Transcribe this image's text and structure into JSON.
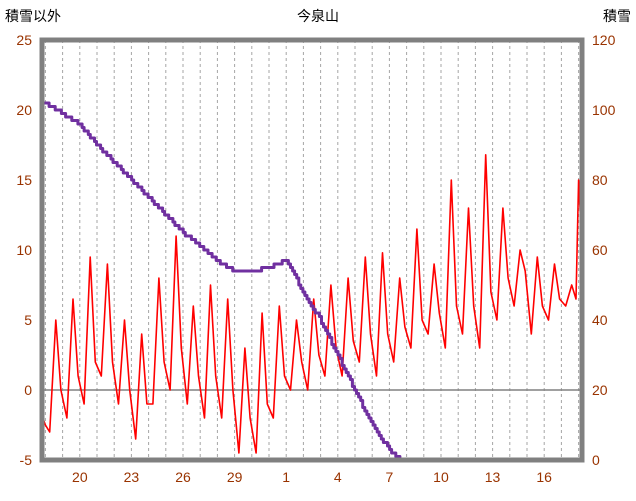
{
  "chart_data": {
    "type": "line",
    "title": "今泉山",
    "left_axis": {
      "title": "積雪以外",
      "min": -5,
      "max": 25,
      "ticks": [
        25,
        20,
        15,
        10,
        5,
        0,
        -5
      ]
    },
    "right_axis": {
      "title": "積雪",
      "min": 0,
      "max": 120,
      "ticks": [
        120,
        100,
        80,
        60,
        40,
        20,
        0
      ]
    },
    "x_axis": {
      "min": 17.8,
      "max": 49.2,
      "gridline_step": 1,
      "tick_positions": [
        20,
        23,
        26,
        29,
        32,
        35,
        38,
        41,
        44,
        47
      ],
      "tick_labels": [
        "20",
        "23",
        "26",
        "29",
        "1",
        "4",
        "7",
        "10",
        "13",
        "16"
      ]
    },
    "colors": {
      "frame": "#808080",
      "gridline": "#A6A6A6",
      "zero_line": "#808080",
      "tick_label": "#993300",
      "title": "#000000"
    },
    "series": [
      {
        "name": "積雪以外",
        "axis": "left",
        "color": "#FF0000",
        "style": "line",
        "points": [
          [
            17.85,
            -2
          ],
          [
            18.0,
            -2.5
          ],
          [
            18.25,
            -3
          ],
          [
            18.6,
            5
          ],
          [
            18.9,
            0
          ],
          [
            19.25,
            -2
          ],
          [
            19.6,
            6.5
          ],
          [
            19.9,
            1
          ],
          [
            20.25,
            -1
          ],
          [
            20.6,
            9.5
          ],
          [
            20.9,
            2
          ],
          [
            21.25,
            1
          ],
          [
            21.6,
            9
          ],
          [
            21.9,
            2
          ],
          [
            22.25,
            -1
          ],
          [
            22.6,
            5
          ],
          [
            22.9,
            0
          ],
          [
            23.25,
            -3.5
          ],
          [
            23.6,
            4
          ],
          [
            23.9,
            -1
          ],
          [
            24.25,
            -1
          ],
          [
            24.6,
            8
          ],
          [
            24.9,
            2
          ],
          [
            25.25,
            0
          ],
          [
            25.6,
            11
          ],
          [
            25.9,
            3
          ],
          [
            26.25,
            -1
          ],
          [
            26.6,
            6
          ],
          [
            26.9,
            1
          ],
          [
            27.25,
            -2
          ],
          [
            27.6,
            7.5
          ],
          [
            27.9,
            1
          ],
          [
            28.25,
            -2
          ],
          [
            28.6,
            6.5
          ],
          [
            28.9,
            0
          ],
          [
            29.25,
            -4.5
          ],
          [
            29.6,
            3
          ],
          [
            29.9,
            -2
          ],
          [
            30.25,
            -4.5
          ],
          [
            30.6,
            5.5
          ],
          [
            30.9,
            -1
          ],
          [
            31.25,
            -2
          ],
          [
            31.6,
            6
          ],
          [
            31.9,
            1
          ],
          [
            32.25,
            0
          ],
          [
            32.6,
            5
          ],
          [
            32.9,
            2
          ],
          [
            33.25,
            0
          ],
          [
            33.6,
            6.5
          ],
          [
            33.9,
            2.5
          ],
          [
            34.25,
            1
          ],
          [
            34.6,
            7.5
          ],
          [
            34.9,
            3
          ],
          [
            35.25,
            1
          ],
          [
            35.6,
            8
          ],
          [
            35.9,
            3.5
          ],
          [
            36.25,
            2
          ],
          [
            36.6,
            9.5
          ],
          [
            36.9,
            4
          ],
          [
            37.25,
            1
          ],
          [
            37.6,
            9.8
          ],
          [
            37.9,
            4
          ],
          [
            38.25,
            2
          ],
          [
            38.6,
            8
          ],
          [
            38.9,
            4.5
          ],
          [
            39.25,
            3
          ],
          [
            39.6,
            11.5
          ],
          [
            39.9,
            5
          ],
          [
            40.25,
            4
          ],
          [
            40.6,
            9
          ],
          [
            40.9,
            5.5
          ],
          [
            41.25,
            3
          ],
          [
            41.6,
            15
          ],
          [
            41.9,
            6
          ],
          [
            42.25,
            4
          ],
          [
            42.6,
            13
          ],
          [
            42.9,
            6
          ],
          [
            43.25,
            3
          ],
          [
            43.6,
            16.8
          ],
          [
            43.9,
            7
          ],
          [
            44.25,
            5
          ],
          [
            44.6,
            13
          ],
          [
            44.9,
            8
          ],
          [
            45.25,
            6
          ],
          [
            45.6,
            10
          ],
          [
            45.9,
            8.5
          ],
          [
            46.25,
            4
          ],
          [
            46.6,
            9.5
          ],
          [
            46.9,
            6
          ],
          [
            47.25,
            5
          ],
          [
            47.6,
            9
          ],
          [
            47.9,
            6.5
          ],
          [
            48.25,
            6
          ],
          [
            48.6,
            7.5
          ],
          [
            48.85,
            6.5
          ],
          [
            49.0,
            15
          ],
          [
            49.15,
            11.5
          ]
        ]
      },
      {
        "name": "積雪",
        "axis": "right",
        "color": "#7030A0",
        "style": "step",
        "points": [
          [
            17.85,
            102
          ],
          [
            18,
            102
          ],
          [
            19,
            99
          ],
          [
            20,
            96
          ],
          [
            21,
            90
          ],
          [
            22,
            85
          ],
          [
            23,
            80
          ],
          [
            24,
            75
          ],
          [
            25,
            70
          ],
          [
            26,
            65
          ],
          [
            27,
            61
          ],
          [
            28,
            57
          ],
          [
            29,
            54
          ],
          [
            30,
            54
          ],
          [
            31,
            55
          ],
          [
            32,
            57
          ],
          [
            33,
            48
          ],
          [
            34,
            40
          ],
          [
            35,
            30
          ],
          [
            36,
            20
          ],
          [
            37,
            10
          ],
          [
            38,
            3
          ],
          [
            38.6,
            0
          ],
          [
            49.2,
            0
          ]
        ]
      }
    ]
  }
}
